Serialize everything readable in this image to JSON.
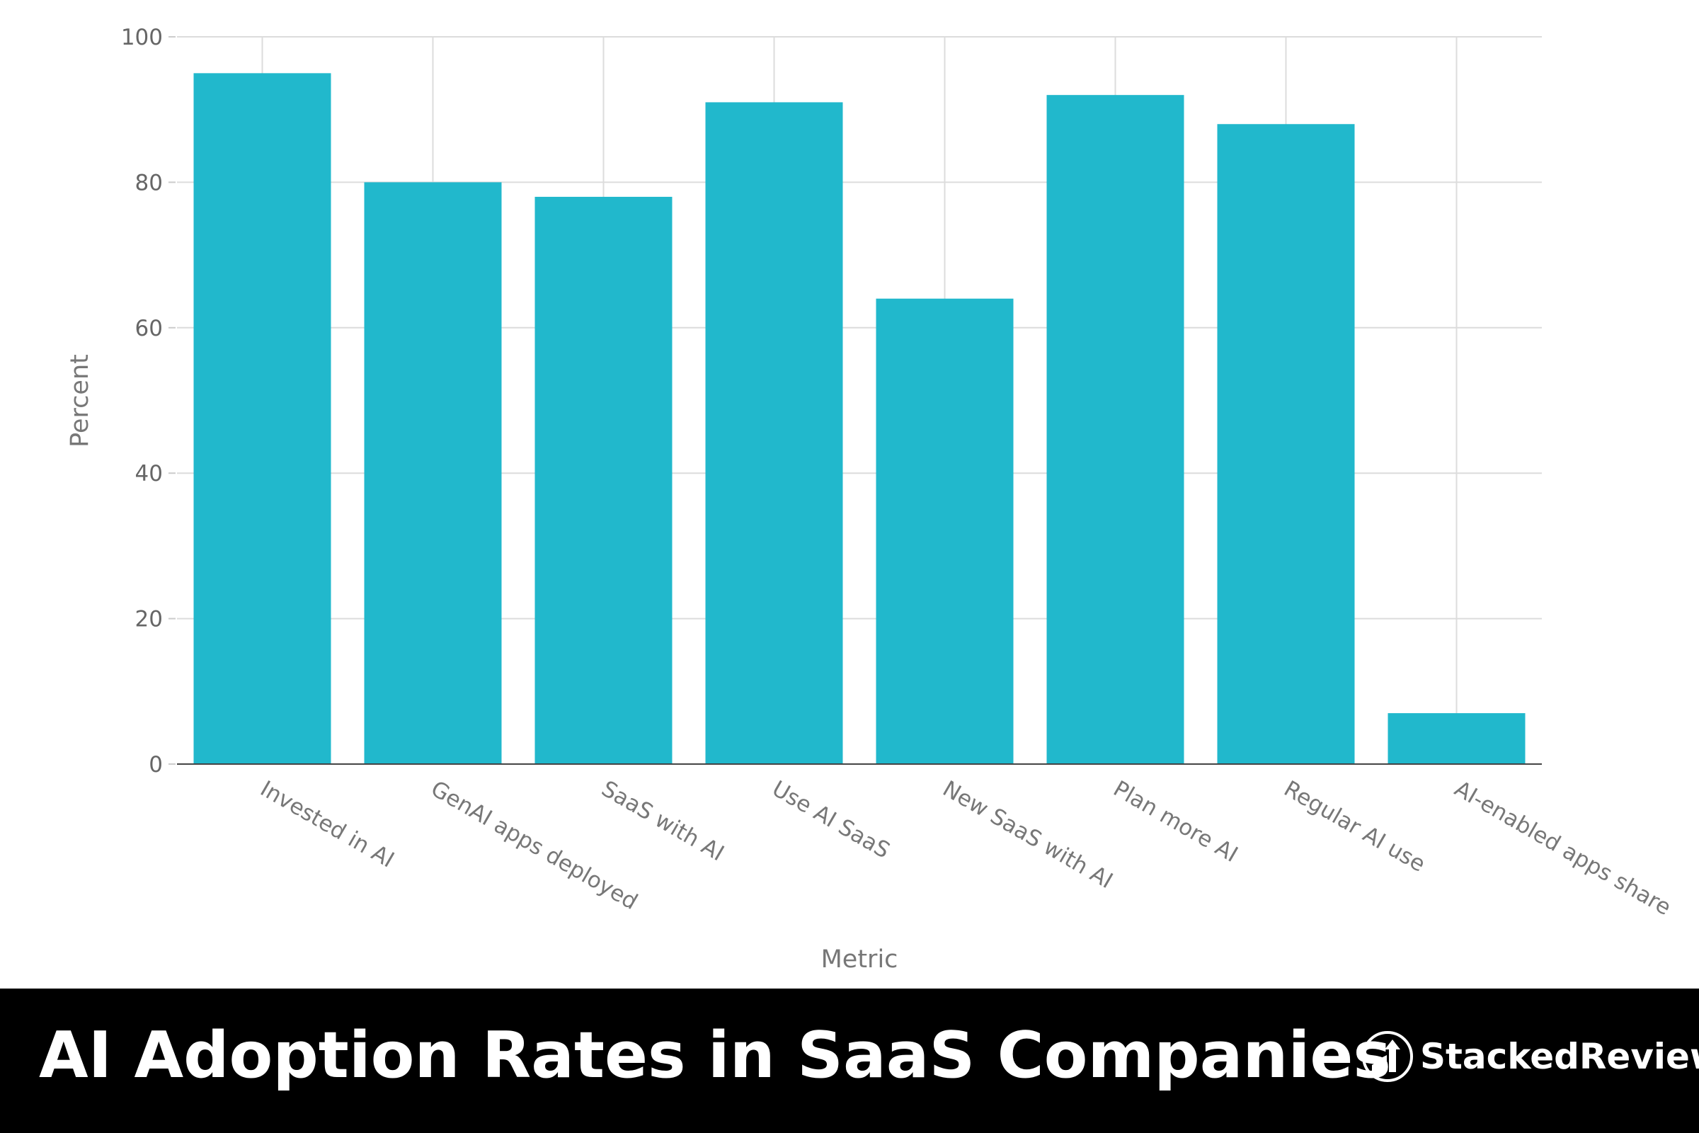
{
  "chart_data": {
    "type": "bar",
    "title": "AI Adoption Rates in SaaS Companies",
    "xlabel": "Metric",
    "ylabel": "Percent",
    "ylim": [
      0,
      100
    ],
    "yticks": [
      0,
      20,
      40,
      60,
      80,
      100
    ],
    "grid": true,
    "bar_color": "#21b8cc",
    "categories": [
      "Invested in AI",
      "GenAI apps deployed",
      "SaaS with AI",
      "Use AI SaaS",
      "New SaaS with AI",
      "Plan more AI",
      "Regular AI use",
      "AI-enabled apps share"
    ],
    "values": [
      95,
      80,
      78,
      91,
      64,
      92,
      88,
      7
    ]
  },
  "banner": {
    "title": "AI Adoption Rates in SaaS Companies",
    "brand": "StackedReview",
    "background": "#000000"
  }
}
